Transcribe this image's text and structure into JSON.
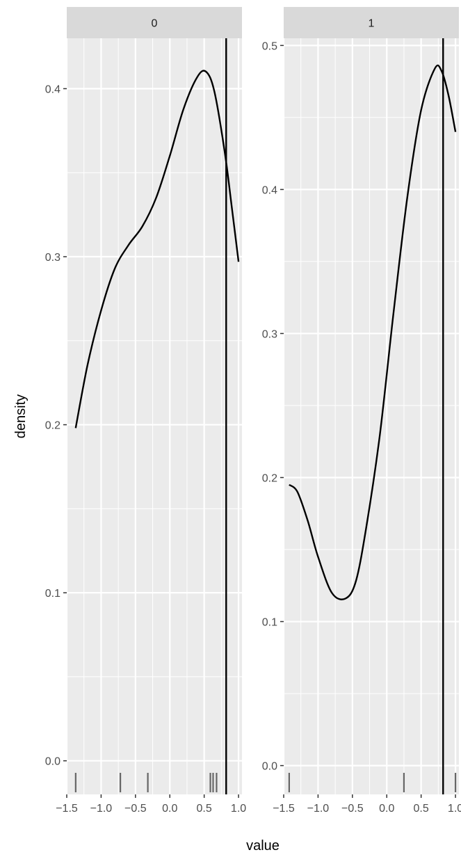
{
  "chart_data": {
    "type": "line",
    "xlabel": "value",
    "ylabel": "density",
    "colors": {
      "panel_background": "#ebebeb",
      "grid": "#ffffff",
      "strip_background": "#d9d9d9",
      "curve": "#000000",
      "rug": "#666666",
      "vline": "#000000"
    },
    "panels": [
      {
        "strip_label": "0",
        "xlim": [
          -1.5,
          1.05
        ],
        "ylim": [
          -0.02,
          0.43
        ],
        "x_ticks": [
          "-1.5",
          "-1.0",
          "-0.5",
          "0.0",
          "0.5",
          "1.0"
        ],
        "y_ticks": [
          "0.0",
          "0.1",
          "0.2",
          "0.3",
          "0.4"
        ],
        "vline_x": 0.82,
        "rug_x": [
          -1.37,
          -0.72,
          -0.32,
          0.59,
          0.63,
          0.68
        ],
        "density": {
          "x": [
            -1.37,
            -1.2,
            -1.0,
            -0.8,
            -0.6,
            -0.4,
            -0.2,
            0.0,
            0.2,
            0.4,
            0.53,
            0.65,
            0.8,
            0.9,
            1.0
          ],
          "y": [
            0.198,
            0.235,
            0.268,
            0.293,
            0.307,
            0.318,
            0.335,
            0.36,
            0.388,
            0.407,
            0.41,
            0.398,
            0.362,
            0.33,
            0.297
          ]
        }
      },
      {
        "strip_label": "1",
        "xlim": [
          -1.5,
          1.05
        ],
        "ylim": [
          -0.02,
          0.505
        ],
        "x_ticks": [
          "-1.5",
          "-1.0",
          "-0.5",
          "0.0",
          "0.5",
          "1.0"
        ],
        "y_ticks": [
          "0.0",
          "0.1",
          "0.2",
          "0.3",
          "0.4",
          "0.5"
        ],
        "vline_x": 0.82,
        "rug_x": [
          -1.42,
          0.25,
          1.0
        ],
        "density": {
          "x": [
            -1.42,
            -1.3,
            -1.15,
            -1.0,
            -0.8,
            -0.6,
            -0.45,
            -0.3,
            -0.1,
            0.1,
            0.3,
            0.5,
            0.7,
            0.8,
            0.9,
            1.0
          ],
          "y": [
            0.195,
            0.19,
            0.17,
            0.145,
            0.12,
            0.116,
            0.128,
            0.165,
            0.23,
            0.315,
            0.395,
            0.455,
            0.484,
            0.482,
            0.465,
            0.44
          ]
        }
      }
    ]
  }
}
